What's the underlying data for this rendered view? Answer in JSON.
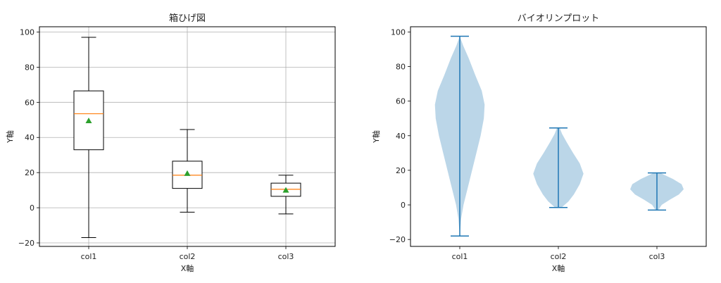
{
  "chart_data": [
    {
      "type": "box",
      "title": "箱ひげ図",
      "xlabel": "X軸",
      "ylabel": "Y軸",
      "ylim": [
        -22,
        103
      ],
      "yticks": [
        -20,
        0,
        20,
        40,
        60,
        80,
        100
      ],
      "ytick_labels": [
        "−20",
        "0",
        "20",
        "40",
        "60",
        "80",
        "100"
      ],
      "grid": true,
      "categories": [
        "col1",
        "col2",
        "col3"
      ],
      "series": [
        {
          "whisker_low": -17,
          "q1": 33,
          "median": 53.5,
          "q3": 66.5,
          "whisker_high": 97,
          "mean": 49.5
        },
        {
          "whisker_low": -2.5,
          "q1": 11,
          "median": 18.5,
          "q3": 26.5,
          "whisker_high": 44.5,
          "mean": 19.5
        },
        {
          "whisker_low": -3.5,
          "q1": 6.5,
          "median": 10.5,
          "q3": 14,
          "whisker_high": 18.5,
          "mean": 10
        }
      ],
      "colors": {
        "box": "#000000",
        "median": "#ff7f0e",
        "mean": "#2ca02c",
        "grid": "#b0b0b0"
      }
    },
    {
      "type": "violin",
      "title": "バイオリンプロット",
      "xlabel": "X軸",
      "ylabel": "Y軸",
      "ylim": [
        -24,
        103
      ],
      "yticks": [
        -20,
        0,
        20,
        40,
        60,
        80,
        100
      ],
      "ytick_labels": [
        "−20",
        "0",
        "20",
        "40",
        "60",
        "80",
        "100"
      ],
      "grid": false,
      "categories": [
        "col1",
        "col2",
        "col3"
      ],
      "series": [
        {
          "min": -18,
          "max": 97.5,
          "profile": [
            [
              -18,
              0.0
            ],
            [
              -8,
              0.05
            ],
            [
              0,
              0.14
            ],
            [
              10,
              0.3
            ],
            [
              20,
              0.46
            ],
            [
              30,
              0.62
            ],
            [
              40,
              0.78
            ],
            [
              50,
              0.9
            ],
            [
              58,
              0.93
            ],
            [
              66,
              0.82
            ],
            [
              75,
              0.58
            ],
            [
              85,
              0.33
            ],
            [
              92,
              0.13
            ],
            [
              97.5,
              0.0
            ]
          ]
        },
        {
          "min": -1.5,
          "max": 44.5,
          "profile": [
            [
              -1.5,
              0.12
            ],
            [
              2,
              0.38
            ],
            [
              6,
              0.58
            ],
            [
              12,
              0.8
            ],
            [
              18,
              0.94
            ],
            [
              24,
              0.8
            ],
            [
              30,
              0.55
            ],
            [
              36,
              0.32
            ],
            [
              41,
              0.14
            ],
            [
              44.5,
              0.05
            ]
          ]
        },
        {
          "min": -3,
          "max": 18.5,
          "profile": [
            [
              -3,
              0.05
            ],
            [
              0,
              0.18
            ],
            [
              3,
              0.48
            ],
            [
              6,
              0.82
            ],
            [
              9,
              1.0
            ],
            [
              12,
              0.92
            ],
            [
              15,
              0.6
            ],
            [
              17,
              0.32
            ],
            [
              18.5,
              0.12
            ]
          ]
        }
      ],
      "colors": {
        "fill": "#1f77b4",
        "fill_opacity": 0.3,
        "line": "#1f77b4"
      }
    }
  ]
}
